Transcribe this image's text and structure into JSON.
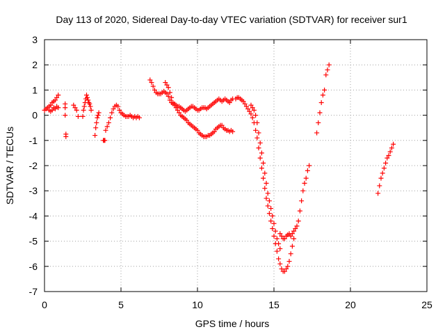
{
  "chart_data": {
    "type": "scatter",
    "title": "Day 113 of 2020, Sidereal Day-to-day VTEC variation (SDTVAR) for receiver sur1",
    "xlabel": "GPS time / hours",
    "ylabel": "SDTVAR / TECUs",
    "xlim": [
      0,
      25
    ],
    "ylim": [
      -7,
      3
    ],
    "xticks": [
      0,
      5,
      10,
      15,
      20,
      25
    ],
    "yticks": [
      -7,
      -6,
      -5,
      -4,
      -3,
      -2,
      -1,
      0,
      1,
      2,
      3
    ],
    "grid": true,
    "marker": "+",
    "colors": {
      "series": "#ff0000",
      "axis": "#000000",
      "grid": "#a0a0a0"
    },
    "series": [
      {
        "name": "sur1",
        "segments": [
          {
            "x": [
              0.0,
              0.1,
              0.2,
              0.3,
              0.4,
              0.5,
              0.6,
              0.7,
              0.8,
              0.9
            ],
            "y": [
              0.2,
              0.25,
              0.3,
              0.35,
              0.4,
              0.5,
              0.55,
              0.6,
              0.7,
              0.8
            ]
          },
          {
            "x": [
              0.3,
              0.4,
              0.5,
              0.6,
              0.7,
              0.8,
              0.9
            ],
            "y": [
              0.2,
              0.15,
              0.2,
              0.3,
              0.25,
              0.35,
              0.3
            ]
          },
          {
            "x": [
              1.35,
              1.35,
              1.35,
              1.4,
              1.4
            ],
            "y": [
              0.45,
              0.3,
              0.0,
              -0.75,
              -0.85
            ]
          },
          {
            "x": [
              1.9,
              2.0,
              2.1,
              2.2
            ],
            "y": [
              0.4,
              0.3,
              0.2,
              -0.05
            ]
          },
          {
            "x": [
              2.5,
              2.55,
              2.6,
              2.65,
              2.7,
              2.75,
              2.8,
              2.85,
              2.9,
              2.95,
              3.0,
              3.05
            ],
            "y": [
              -0.05,
              0.2,
              0.35,
              0.5,
              0.65,
              0.8,
              0.7,
              0.6,
              0.5,
              0.45,
              0.35,
              0.2
            ]
          },
          {
            "x": [
              3.3,
              3.35,
              3.4,
              3.45,
              3.5,
              3.55
            ],
            "y": [
              -0.8,
              -0.5,
              -0.3,
              -0.1,
              0.0,
              0.1
            ]
          },
          {
            "x": [
              3.85,
              3.9,
              3.95
            ],
            "y": [
              -1.0,
              -1.0,
              -1.0
            ]
          },
          {
            "x": [
              4.0,
              4.1,
              4.2,
              4.3,
              4.4,
              4.5,
              4.6,
              4.7,
              4.8,
              4.9,
              5.0,
              5.1,
              5.2,
              5.3,
              5.4,
              5.5,
              5.6,
              5.7,
              5.8,
              5.9,
              6.0,
              6.1,
              6.2
            ],
            "y": [
              -0.6,
              -0.45,
              -0.3,
              -0.1,
              0.1,
              0.25,
              0.35,
              0.4,
              0.35,
              0.2,
              0.1,
              0.05,
              0.0,
              -0.05,
              -0.05,
              -0.05,
              0.0,
              -0.05,
              -0.1,
              -0.05,
              -0.1,
              -0.05,
              -0.1
            ]
          },
          {
            "x": [
              6.9,
              7.0,
              7.1,
              7.2,
              7.3,
              7.4,
              7.5,
              7.6,
              7.7,
              7.8,
              7.9,
              8.0,
              8.1,
              8.2,
              8.3,
              8.4,
              8.5,
              8.6,
              8.7,
              8.8,
              8.9,
              9.0,
              9.1,
              9.2,
              9.3,
              9.4,
              9.5,
              9.6,
              9.7,
              9.8,
              9.9,
              10.0,
              10.1,
              10.2,
              10.3,
              10.4,
              10.5,
              10.6,
              10.7,
              10.8,
              10.9,
              11.0,
              11.1,
              11.2,
              11.3,
              11.4,
              11.5,
              11.6,
              11.7,
              11.8,
              11.9,
              12.0,
              12.1,
              12.2,
              12.3
            ],
            "y": [
              1.4,
              1.3,
              1.15,
              1.0,
              0.9,
              0.85,
              0.85,
              0.85,
              0.9,
              0.95,
              0.9,
              0.85,
              0.75,
              0.6,
              0.5,
              0.45,
              0.45,
              0.4,
              0.35,
              0.35,
              0.3,
              0.25,
              0.2,
              0.15,
              0.2,
              0.25,
              0.3,
              0.35,
              0.35,
              0.3,
              0.25,
              0.2,
              0.2,
              0.25,
              0.3,
              0.3,
              0.3,
              0.25,
              0.3,
              0.35,
              0.4,
              0.45,
              0.5,
              0.55,
              0.6,
              0.65,
              0.6,
              0.55,
              0.6,
              0.65,
              0.6,
              0.55,
              0.5,
              0.6,
              0.65
            ]
          },
          {
            "x": [
              7.9,
              8.0,
              8.1,
              8.2,
              8.3,
              8.4,
              8.5,
              8.6,
              8.7,
              8.8,
              8.9,
              9.0,
              9.1,
              9.2,
              9.3,
              9.4,
              9.5,
              9.6,
              9.7,
              9.8,
              9.9,
              10.0,
              10.1,
              10.2,
              10.3,
              10.4,
              10.5,
              10.6,
              10.7,
              10.8,
              10.9,
              11.0,
              11.1,
              11.2,
              11.3,
              11.4,
              11.5,
              11.6,
              11.7,
              11.8,
              11.9,
              12.0,
              12.1,
              12.2,
              12.3
            ],
            "y": [
              1.3,
              1.2,
              1.1,
              0.9,
              0.7,
              0.5,
              0.4,
              0.3,
              0.2,
              0.1,
              0.0,
              -0.05,
              -0.1,
              -0.15,
              -0.2,
              -0.3,
              -0.35,
              -0.4,
              -0.45,
              -0.5,
              -0.55,
              -0.6,
              -0.7,
              -0.75,
              -0.8,
              -0.85,
              -0.85,
              -0.85,
              -0.8,
              -0.8,
              -0.75,
              -0.7,
              -0.65,
              -0.55,
              -0.5,
              -0.45,
              -0.4,
              -0.4,
              -0.5,
              -0.55,
              -0.6,
              -0.6,
              -0.65,
              -0.6,
              -0.65
            ]
          },
          {
            "x": [
              12.5,
              12.6,
              12.7,
              12.8,
              12.9,
              13.0,
              13.1,
              13.2,
              13.3,
              13.4,
              13.5,
              13.6,
              13.7,
              13.8,
              13.9,
              14.0,
              14.1,
              14.2,
              14.3,
              14.4,
              14.5,
              14.6,
              14.7,
              14.8,
              14.9,
              15.0,
              15.1,
              15.2,
              15.3,
              15.4,
              15.5,
              15.6,
              15.7,
              15.8,
              15.9,
              16.0,
              16.1,
              16.2,
              16.3
            ],
            "y": [
              0.65,
              0.7,
              0.7,
              0.65,
              0.6,
              0.55,
              0.45,
              0.35,
              0.25,
              0.15,
              0.05,
              -0.1,
              -0.3,
              -0.6,
              -0.9,
              -1.3,
              -1.7,
              -2.1,
              -2.5,
              -2.9,
              -3.3,
              -3.6,
              -3.9,
              -4.2,
              -4.5,
              -4.8,
              -5.1,
              -5.4,
              -5.7,
              -5.9,
              -6.1,
              -6.2,
              -6.2,
              -6.1,
              -6.0,
              -5.8,
              -5.5,
              -5.2,
              -4.9
            ]
          },
          {
            "x": [
              13.5,
              13.6,
              13.7,
              13.8,
              13.9,
              14.0,
              14.1,
              14.2,
              14.3,
              14.4,
              14.5,
              14.6,
              14.7,
              14.8,
              14.9,
              15.0,
              15.1,
              15.2,
              15.3,
              15.4
            ],
            "y": [
              0.4,
              0.3,
              0.2,
              0.0,
              -0.3,
              -0.7,
              -1.1,
              -1.5,
              -1.9,
              -2.3,
              -2.7,
              -3.1,
              -3.4,
              -3.7,
              -4.0,
              -4.3,
              -4.6,
              -4.9,
              -5.1,
              -5.3
            ]
          },
          {
            "x": [
              15.4,
              15.5,
              15.6,
              15.7,
              15.8,
              15.9,
              16.0,
              16.1,
              16.2,
              16.3,
              16.4,
              16.5,
              16.6,
              16.7,
              16.8,
              16.9,
              17.0,
              17.1,
              17.2,
              17.3
            ],
            "y": [
              -4.7,
              -4.8,
              -4.9,
              -4.9,
              -4.8,
              -4.75,
              -4.7,
              -4.8,
              -4.7,
              -4.6,
              -4.5,
              -4.4,
              -4.2,
              -3.8,
              -3.4,
              -3.0,
              -2.7,
              -2.5,
              -2.2,
              -2.0
            ]
          },
          {
            "x": [
              17.8,
              17.9,
              18.0,
              18.1,
              18.2,
              18.3,
              18.4,
              18.5,
              18.6
            ],
            "y": [
              -0.7,
              -0.3,
              0.1,
              0.5,
              0.8,
              1.0,
              1.6,
              1.8,
              2.0
            ]
          },
          {
            "x": [
              21.8,
              21.9,
              22.0,
              22.1,
              22.2,
              22.3,
              22.4,
              22.5,
              22.6,
              22.7,
              22.8
            ],
            "y": [
              -3.1,
              -2.8,
              -2.5,
              -2.3,
              -2.1,
              -1.9,
              -1.7,
              -1.6,
              -1.45,
              -1.3,
              -1.15
            ]
          }
        ]
      }
    ]
  }
}
